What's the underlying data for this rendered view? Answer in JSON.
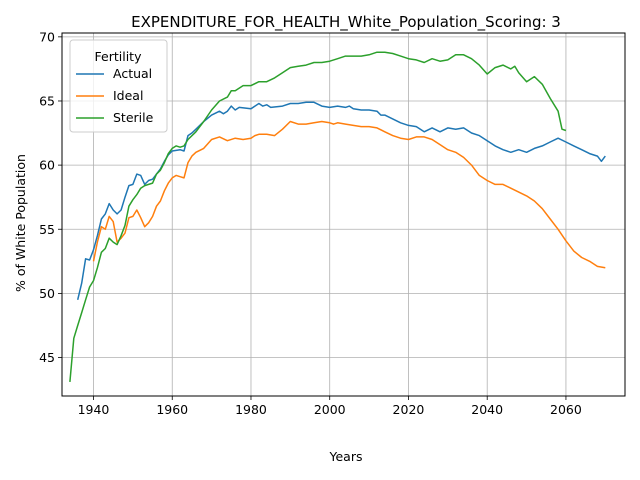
{
  "chart_data": {
    "type": "line",
    "title": "EXPENDITURE_FOR_HEALTH_White_Population_Scoring: 3",
    "xlabel": "Years",
    "ylabel": "% of White Population",
    "xlim": [
      1932,
      2075
    ],
    "ylim": [
      42,
      70.3
    ],
    "xticks": [
      1940,
      1960,
      1980,
      2000,
      2020,
      2040,
      2060
    ],
    "yticks": [
      45,
      50,
      55,
      60,
      65,
      70
    ],
    "grid": true,
    "legend": {
      "title": "Fertility",
      "placement": "top-left"
    },
    "series": [
      {
        "name": "Actual",
        "color": "#1f77b4",
        "x": [
          1936,
          1937,
          1938,
          1939,
          1940,
          1941,
          1942,
          1943,
          1944,
          1945,
          1946,
          1947,
          1948,
          1949,
          1950,
          1951,
          1952,
          1953,
          1954,
          1955,
          1956,
          1957,
          1958,
          1959,
          1960,
          1962,
          1963,
          1964,
          1965,
          1966,
          1968,
          1970,
          1972,
          1973,
          1974,
          1975,
          1976,
          1977,
          1980,
          1982,
          1983,
          1984,
          1985,
          1988,
          1990,
          1992,
          1994,
          1996,
          1998,
          2000,
          2002,
          2004,
          2005,
          2006,
          2008,
          2010,
          2012,
          2013,
          2014,
          2016,
          2018,
          2020,
          2022,
          2024,
          2026,
          2028,
          2030,
          2032,
          2034,
          2036,
          2038,
          2040,
          2042,
          2044,
          2046,
          2048,
          2050,
          2052,
          2054,
          2056,
          2058,
          2060,
          2062,
          2064,
          2066,
          2068,
          2069,
          2070
        ],
        "values": [
          49.5,
          50.8,
          52.7,
          52.6,
          53.4,
          54.5,
          55.8,
          56.2,
          57.0,
          56.5,
          56.2,
          56.5,
          57.5,
          58.4,
          58.5,
          59.3,
          59.2,
          58.5,
          58.8,
          58.9,
          59.3,
          59.7,
          60.3,
          60.8,
          61.1,
          61.2,
          61.1,
          62.3,
          62.5,
          62.8,
          63.4,
          63.9,
          64.2,
          64.0,
          64.2,
          64.6,
          64.3,
          64.5,
          64.4,
          64.8,
          64.6,
          64.7,
          64.5,
          64.6,
          64.8,
          64.8,
          64.9,
          64.9,
          64.6,
          64.5,
          64.6,
          64.5,
          64.6,
          64.4,
          64.3,
          64.3,
          64.2,
          63.9,
          63.9,
          63.6,
          63.3,
          63.1,
          63.0,
          62.6,
          62.9,
          62.6,
          62.9,
          62.8,
          62.9,
          62.5,
          62.3,
          61.9,
          61.5,
          61.2,
          61.0,
          61.2,
          61.0,
          61.3,
          61.5,
          61.8,
          62.1,
          61.8,
          61.5,
          61.2,
          60.9,
          60.7,
          60.3,
          60.7
        ]
      },
      {
        "name": "Ideal",
        "color": "#ff7f0e",
        "x": [
          1940,
          1941,
          1942,
          1943,
          1944,
          1945,
          1946,
          1947,
          1948,
          1949,
          1950,
          1951,
          1952,
          1953,
          1954,
          1955,
          1956,
          1957,
          1958,
          1959,
          1960,
          1961,
          1962,
          1963,
          1964,
          1965,
          1966,
          1968,
          1970,
          1972,
          1974,
          1976,
          1978,
          1980,
          1981,
          1982,
          1984,
          1986,
          1988,
          1990,
          1992,
          1994,
          1996,
          1998,
          2000,
          2001,
          2002,
          2004,
          2006,
          2008,
          2010,
          2012,
          2014,
          2016,
          2018,
          2020,
          2022,
          2024,
          2026,
          2028,
          2030,
          2032,
          2034,
          2036,
          2038,
          2040,
          2042,
          2044,
          2046,
          2048,
          2050,
          2052,
          2054,
          2056,
          2058,
          2060,
          2062,
          2064,
          2066,
          2068,
          2070
        ],
        "values": [
          52.5,
          54.0,
          55.2,
          55.0,
          56.0,
          55.6,
          54.0,
          54.3,
          54.7,
          55.9,
          56.0,
          56.5,
          55.9,
          55.2,
          55.5,
          56.0,
          56.8,
          57.2,
          58.0,
          58.6,
          59.0,
          59.2,
          59.1,
          59.0,
          60.2,
          60.7,
          61.0,
          61.3,
          62.0,
          62.2,
          61.9,
          62.1,
          62.0,
          62.1,
          62.3,
          62.4,
          62.4,
          62.3,
          62.8,
          63.4,
          63.2,
          63.2,
          63.3,
          63.4,
          63.3,
          63.2,
          63.3,
          63.2,
          63.1,
          63.0,
          63.0,
          62.9,
          62.6,
          62.3,
          62.1,
          62.0,
          62.2,
          62.2,
          62.0,
          61.6,
          61.2,
          61.0,
          60.6,
          60.0,
          59.2,
          58.8,
          58.5,
          58.5,
          58.2,
          57.9,
          57.6,
          57.2,
          56.6,
          55.8,
          55.0,
          54.1,
          53.3,
          52.8,
          52.5,
          52.1,
          52.0
        ]
      },
      {
        "name": "Sterile",
        "color": "#2ca02c",
        "x": [
          1934,
          1935,
          1936,
          1937,
          1938,
          1939,
          1940,
          1941,
          1942,
          1943,
          1944,
          1945,
          1946,
          1947,
          1948,
          1949,
          1950,
          1951,
          1952,
          1953,
          1954,
          1955,
          1956,
          1957,
          1958,
          1959,
          1960,
          1961,
          1962,
          1963,
          1964,
          1966,
          1968,
          1970,
          1972,
          1974,
          1975,
          1976,
          1978,
          1980,
          1982,
          1984,
          1986,
          1988,
          1990,
          1992,
          1994,
          1996,
          1998,
          2000,
          2002,
          2004,
          2006,
          2008,
          2010,
          2012,
          2014,
          2016,
          2018,
          2020,
          2022,
          2024,
          2026,
          2028,
          2030,
          2032,
          2034,
          2036,
          2038,
          2040,
          2042,
          2044,
          2046,
          2047,
          2048,
          2050,
          2052,
          2054,
          2056,
          2058,
          2059,
          2060
        ],
        "values": [
          43.1,
          46.5,
          47.5,
          48.5,
          49.5,
          50.5,
          51.0,
          52.0,
          53.2,
          53.5,
          54.3,
          54.0,
          53.8,
          54.5,
          55.3,
          56.8,
          57.3,
          57.7,
          58.2,
          58.4,
          58.5,
          58.6,
          59.3,
          59.6,
          60.2,
          60.9,
          61.3,
          61.5,
          61.4,
          61.5,
          62.0,
          62.6,
          63.4,
          64.3,
          65.0,
          65.3,
          65.8,
          65.8,
          66.2,
          66.2,
          66.5,
          66.5,
          66.8,
          67.2,
          67.6,
          67.7,
          67.8,
          68.0,
          68.0,
          68.1,
          68.3,
          68.5,
          68.5,
          68.5,
          68.6,
          68.8,
          68.8,
          68.7,
          68.5,
          68.3,
          68.2,
          68.0,
          68.3,
          68.1,
          68.2,
          68.6,
          68.6,
          68.3,
          67.8,
          67.1,
          67.6,
          67.8,
          67.5,
          67.7,
          67.2,
          66.5,
          66.9,
          66.3,
          65.2,
          64.2,
          62.8,
          62.7
        ]
      }
    ]
  }
}
